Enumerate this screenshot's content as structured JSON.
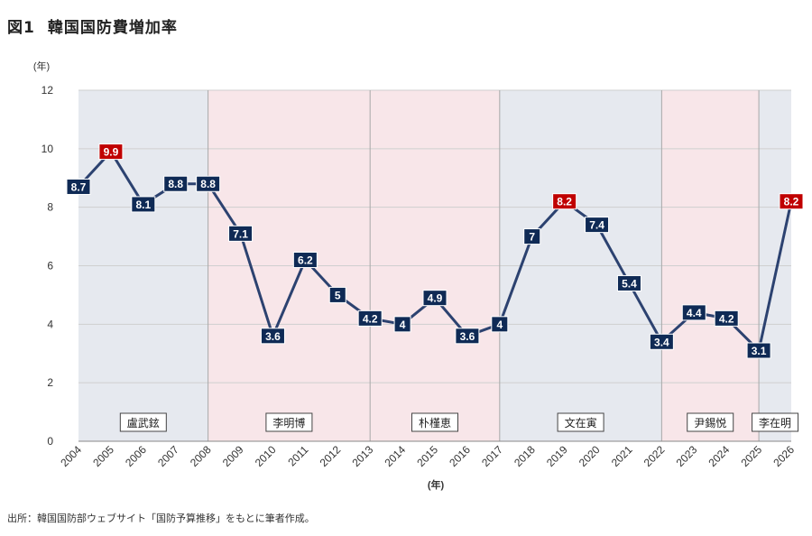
{
  "figure": {
    "number": "図1",
    "title": "韓国国防費増加率",
    "source": "出所：韓国国防部ウェブサイト「国防予算推移」をもとに筆者作成。"
  },
  "chart_data": {
    "type": "line",
    "title": "韓国国防費増加率",
    "y_unit_label": "(年)",
    "xlabel": "(年)",
    "ylabel": "",
    "ylim": [
      0,
      12
    ],
    "yticks": [
      0,
      2,
      4,
      6,
      8,
      10,
      12
    ],
    "grid": true,
    "legend": "none",
    "x": [
      "2004",
      "2005",
      "2006",
      "2007",
      "2008",
      "2009",
      "2010",
      "2011",
      "2012",
      "2013",
      "2014",
      "2015",
      "2016",
      "2017",
      "2018",
      "2019",
      "2020",
      "2021",
      "2022",
      "2023",
      "2024",
      "2025",
      "2026"
    ],
    "series": [
      {
        "values": [
          8.7,
          9.9,
          8.1,
          8.8,
          8.8,
          7.1,
          3.6,
          6.2,
          5,
          4.2,
          4,
          4.9,
          3.6,
          4,
          7,
          8.2,
          7.4,
          5.4,
          3.4,
          4.4,
          4.2,
          3.1,
          8.2
        ]
      }
    ],
    "highlighted_points": [
      "2005",
      "2019",
      "2026"
    ],
    "eras": [
      {
        "name": "盧武鉉",
        "from": "2004",
        "to": "2008",
        "shade": "blue"
      },
      {
        "name": "李明博",
        "from": "2008",
        "to": "2013",
        "shade": "pink"
      },
      {
        "name": "朴槿恵",
        "from": "2013",
        "to": "2017",
        "shade": "pink"
      },
      {
        "name": "文在寅",
        "from": "2017",
        "to": "2022",
        "shade": "blue"
      },
      {
        "name": "尹錫悦",
        "from": "2022",
        "to": "2025",
        "shade": "pink"
      },
      {
        "name": "李在明",
        "from": "2025",
        "to": "2026",
        "shade": "blue"
      }
    ],
    "colors": {
      "line": "#2c4270",
      "label_bg": "#0f2a55",
      "label_highlight_bg": "#c00000",
      "shade_blue": "#e6e9ef",
      "shade_pink": "#f8e6e9",
      "grid": "#cfcfcf"
    }
  }
}
